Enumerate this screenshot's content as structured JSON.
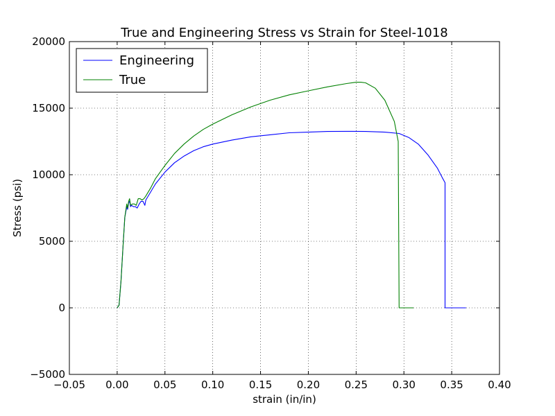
{
  "chart_data": {
    "type": "line",
    "title": "True and Engineering Stress vs Strain for Steel-1018",
    "xlabel": "strain (in/in)",
    "ylabel": "Stress (psi)",
    "xlim": [
      -0.05,
      0.4
    ],
    "ylim": [
      -5000,
      20000
    ],
    "xticks": [
      -0.05,
      0.0,
      0.05,
      0.1,
      0.15,
      0.2,
      0.25,
      0.3,
      0.35,
      0.4
    ],
    "xtick_labels": [
      "−0.05",
      "0.00",
      "0.05",
      "0.10",
      "0.15",
      "0.20",
      "0.25",
      "0.30",
      "0.35",
      "0.40"
    ],
    "yticks": [
      -5000,
      0,
      5000,
      10000,
      15000,
      20000
    ],
    "ytick_labels": [
      "−5000",
      "0",
      "5000",
      "10000",
      "15000",
      "20000"
    ],
    "grid": true,
    "legend_position": "top-left",
    "series": [
      {
        "name": "Engineering",
        "color": "#0000ff",
        "x": [
          0.0,
          0.002,
          0.004,
          0.006,
          0.008,
          0.01,
          0.011,
          0.012,
          0.013,
          0.014,
          0.015,
          0.017,
          0.019,
          0.021,
          0.023,
          0.025,
          0.027,
          0.029,
          0.03,
          0.035,
          0.04,
          0.05,
          0.06,
          0.07,
          0.08,
          0.09,
          0.1,
          0.12,
          0.14,
          0.16,
          0.18,
          0.2,
          0.22,
          0.24,
          0.26,
          0.28,
          0.295,
          0.305,
          0.315,
          0.325,
          0.335,
          0.34,
          0.343,
          0.343,
          0.35,
          0.36,
          0.365
        ],
        "y": [
          0,
          200,
          2000,
          4500,
          6800,
          7600,
          7400,
          7900,
          8000,
          7600,
          7700,
          7600,
          7600,
          7500,
          7800,
          8000,
          8000,
          7700,
          8100,
          8700,
          9300,
          10200,
          10900,
          11400,
          11800,
          12100,
          12300,
          12600,
          12850,
          13000,
          13150,
          13200,
          13250,
          13260,
          13250,
          13200,
          13100,
          12800,
          12300,
          11500,
          10500,
          9800,
          9400,
          0,
          0,
          0,
          0
        ]
      },
      {
        "name": "True",
        "color": "#008000",
        "x": [
          0.0,
          0.002,
          0.004,
          0.006,
          0.008,
          0.01,
          0.011,
          0.012,
          0.013,
          0.014,
          0.016,
          0.018,
          0.02,
          0.022,
          0.024,
          0.026,
          0.028,
          0.03,
          0.035,
          0.04,
          0.05,
          0.06,
          0.07,
          0.08,
          0.09,
          0.1,
          0.12,
          0.14,
          0.16,
          0.18,
          0.2,
          0.22,
          0.24,
          0.25,
          0.255,
          0.26,
          0.27,
          0.28,
          0.29,
          0.294,
          0.295,
          0.3,
          0.31
        ],
        "y": [
          0,
          200,
          2000,
          4500,
          6800,
          7800,
          7500,
          8000,
          8200,
          7700,
          7800,
          7800,
          7700,
          8200,
          8200,
          8100,
          8200,
          8400,
          9000,
          9700,
          10700,
          11600,
          12300,
          12900,
          13400,
          13800,
          14500,
          15100,
          15600,
          16000,
          16300,
          16600,
          16850,
          16950,
          16950,
          16900,
          16500,
          15600,
          14000,
          12500,
          0,
          0,
          0
        ]
      }
    ]
  }
}
